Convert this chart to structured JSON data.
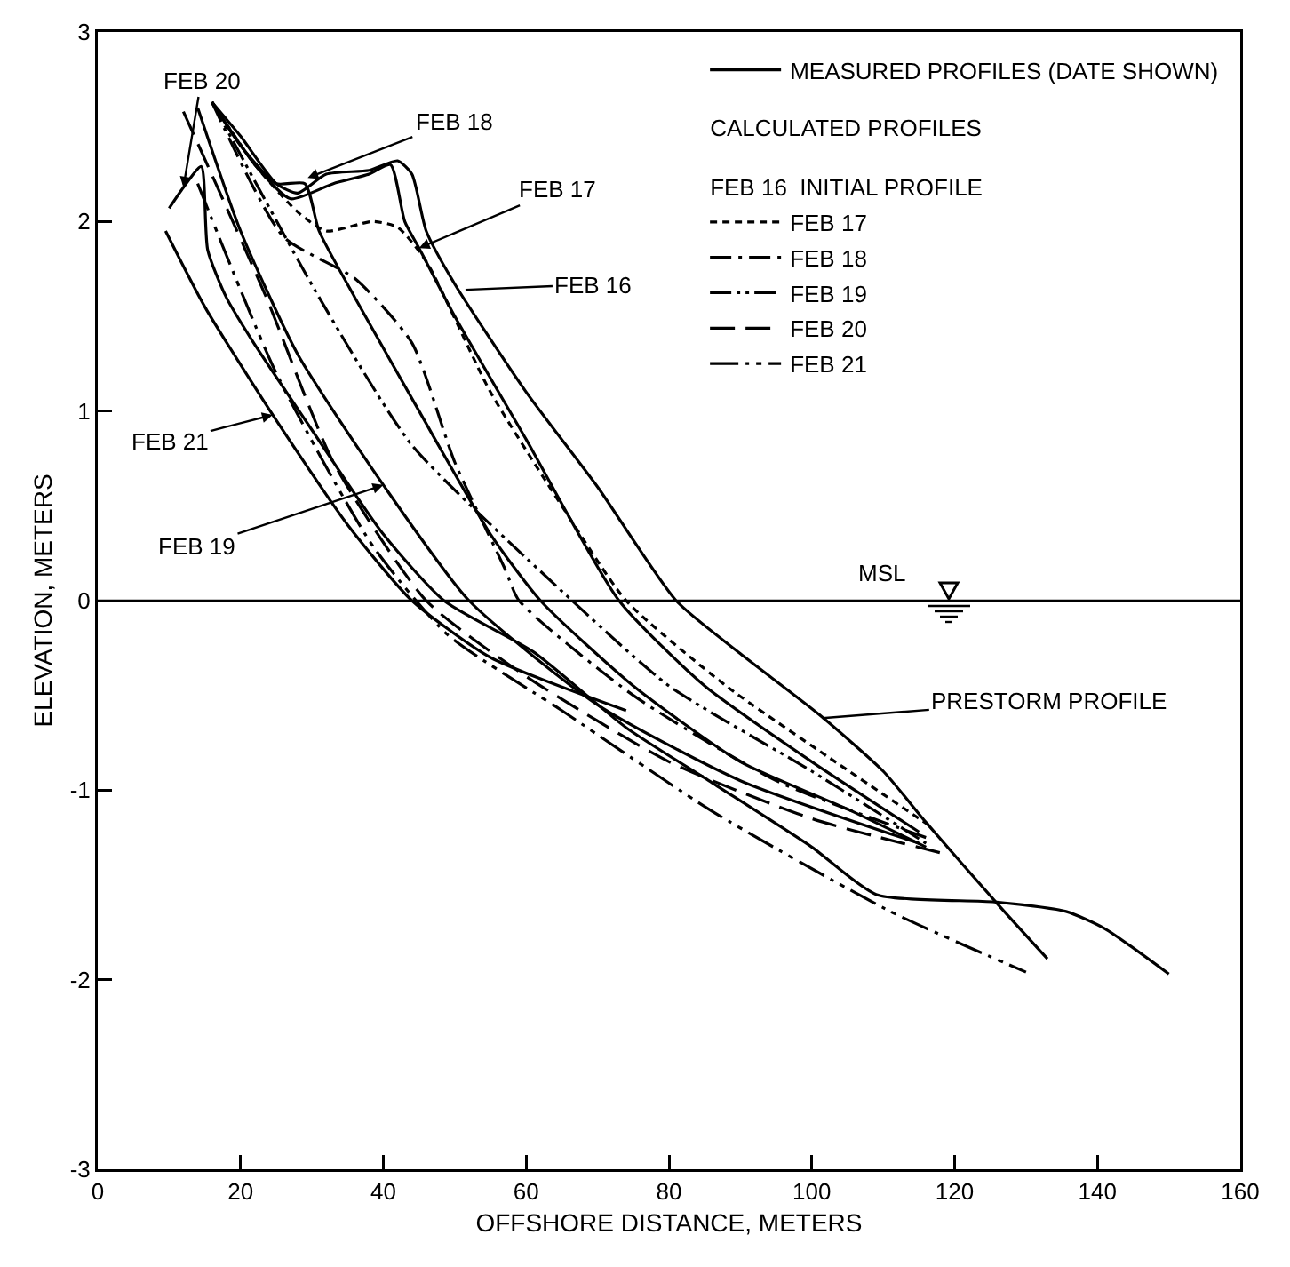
{
  "chart_data": {
    "type": "line",
    "xlabel": "OFFSHORE DISTANCE, METERS",
    "ylabel": "ELEVATION, METERS",
    "legend_title": "CALCULATED PROFILES",
    "xlim": [
      0,
      160
    ],
    "ylim": [
      -3,
      3
    ],
    "xticks": [
      0,
      20,
      40,
      60,
      80,
      100,
      120,
      140,
      160
    ],
    "yticks": [
      -3,
      -2,
      -1,
      0,
      1,
      2,
      3
    ],
    "grid": false,
    "legend": "top right",
    "marker": "none",
    "series": [
      {
        "name": "MEASURED PROFILES (DATE SHOWN)",
        "color": "#000000",
        "line_style": "solid",
        "x": [
          16,
          20,
          25,
          28,
          32,
          38,
          42,
          44,
          46,
          50,
          60,
          70,
          81,
          90,
          101,
          110,
          116,
          126,
          133
        ],
        "values": [
          2.63,
          2.45,
          2.2,
          2.15,
          2.25,
          2.27,
          2.32,
          2.25,
          1.95,
          1.67,
          1.1,
          0.6,
          0,
          -0.28,
          -0.6,
          -0.9,
          -1.17,
          -1.6,
          -1.89
        ]
      },
      {
        "color": "#000000",
        "line_style": "solid",
        "x": [
          16,
          22,
          27,
          33,
          38,
          41,
          43,
          45,
          50,
          60,
          73,
          85,
          100,
          115
        ],
        "values": [
          2.63,
          2.3,
          2.12,
          2.2,
          2.25,
          2.3,
          2.0,
          1.86,
          1.5,
          0.85,
          0,
          -0.45,
          -0.85,
          -1.22
        ]
      },
      {
        "color": "#000000",
        "line_style": "solid",
        "x": [
          16,
          20,
          25,
          29,
          31,
          36,
          45,
          55,
          62,
          75,
          90,
          105,
          116
        ],
        "values": [
          2.63,
          2.4,
          2.2,
          2.2,
          1.95,
          1.6,
          1.0,
          0.35,
          0,
          -0.45,
          -0.85,
          -1.1,
          -1.3
        ]
      },
      {
        "color": "#000000",
        "line_style": "solid",
        "x": [
          14,
          20,
          28,
          40,
          52,
          70,
          90,
          115
        ],
        "values": [
          2.6,
          1.95,
          1.3,
          0.61,
          0,
          -0.55,
          -0.95,
          -1.28
        ]
      },
      {
        "color": "#000000",
        "line_style": "solid",
        "x": [
          10,
          12,
          14.5,
          15.4,
          18,
          21.5,
          30,
          40,
          48.5,
          61,
          74,
          86,
          100,
          109,
          125.6,
          135.6,
          141,
          150
        ],
        "values": [
          2.07,
          2.18,
          2.29,
          1.85,
          1.6,
          1.38,
          0.9,
          0.35,
          0,
          -0.27,
          -0.67,
          -0.96,
          -1.3,
          -1.55,
          -1.59,
          -1.64,
          -1.73,
          -1.97
        ]
      },
      {
        "color": "#000000",
        "line_style": "solid",
        "x": [
          9.5,
          15,
          24.5,
          35,
          44,
          55,
          74
        ],
        "values": [
          1.95,
          1.55,
          0.98,
          0.4,
          0,
          -0.3,
          -0.58
        ]
      },
      {
        "name": "FEB 17",
        "color": "#000000",
        "line_style": "dotted",
        "x": [
          16,
          22,
          28,
          32,
          38.5,
          42,
          46,
          55,
          65,
          74,
          88,
          102.5,
          117
        ],
        "values": [
          2.63,
          2.3,
          2.05,
          1.95,
          2.0,
          1.97,
          1.79,
          1.1,
          0.5,
          0,
          -0.45,
          -0.83,
          -1.2
        ]
      },
      {
        "name": "FEB 18",
        "color": "#000000",
        "line_style": "dashdot",
        "x": [
          16,
          26,
          36,
          44,
          50,
          57,
          59,
          75,
          95,
          116
        ],
        "values": [
          2.63,
          1.92,
          1.7,
          1.36,
          0.73,
          0.17,
          0,
          -0.5,
          -0.95,
          -1.25
        ]
      },
      {
        "name": "FEB 19",
        "color": "#000000",
        "line_style": "dashdotdot",
        "x": [
          16,
          31,
          44,
          65,
          80,
          100,
          116
        ],
        "values": [
          2.63,
          1.6,
          0.82,
          0.05,
          -0.45,
          -0.9,
          -1.28
        ]
      },
      {
        "name": "FEB 20",
        "color": "#000000",
        "line_style": "dashed",
        "x": [
          12,
          23.6,
          33,
          46,
          60,
          80,
          100,
          118
        ],
        "values": [
          2.58,
          1.6,
          0.73,
          0,
          -0.4,
          -0.85,
          -1.15,
          -1.33
        ]
      },
      {
        "name": "FEB 21",
        "color": "#000000",
        "line_style": "longdashdot",
        "x": [
          14,
          25,
          38.5,
          49,
          65,
          86,
          111,
          130
        ],
        "values": [
          2.2,
          1.2,
          0.29,
          -0.18,
          -0.58,
          -1.11,
          -1.64,
          -1.96
        ]
      }
    ],
    "ref_lines": [
      {
        "axis": "y",
        "value": 0,
        "label": "MSL",
        "color": "#000000",
        "line_style": "solid"
      }
    ],
    "annotations": [
      "FEB 16  INITIAL PROFILE",
      {
        "text": "FEB 20",
        "x": 12,
        "y": 2.18
      },
      {
        "text": "FEB 18",
        "x": 29.4,
        "y": 2.23
      },
      {
        "text": "FEB 17",
        "x": 45,
        "y": 1.86
      },
      "FEB 16",
      {
        "text": "FEB 21",
        "x": 24.5,
        "y": 0.98
      },
      {
        "text": "FEB 19",
        "x": 40,
        "y": 0.61
      },
      "PRESTORM PROFILE"
    ]
  }
}
